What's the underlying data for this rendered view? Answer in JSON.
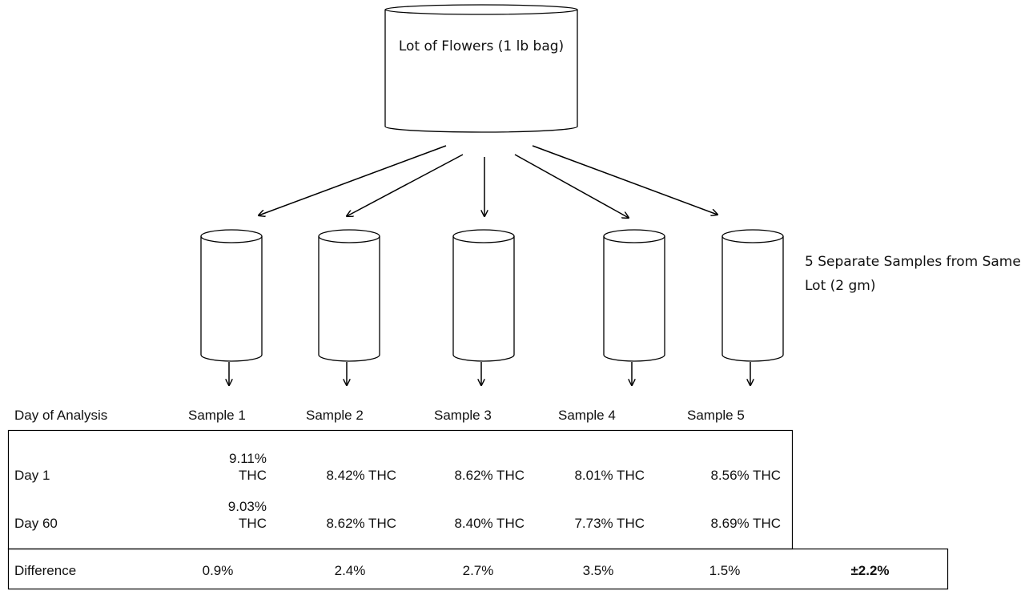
{
  "top_label": "Lot of Flowers (1 lb bag)",
  "side_label": "5 Separate Samples from Same Lot (2 gm)",
  "table": {
    "header": [
      "Day of Analysis",
      "Sample 1",
      "Sample 2",
      "Sample 3",
      "Sample 4",
      "Sample 5"
    ],
    "rows": [
      [
        "Day 1",
        "9.11% THC",
        "8.42% THC",
        "8.62% THC",
        "8.01% THC",
        "8.56% THC"
      ],
      [
        "Day 60",
        "9.03% THC",
        "8.62% THC",
        "8.40% THC",
        "7.73% THC",
        "8.69% THC"
      ],
      [
        "Difference",
        "0.9%",
        "2.4%",
        "2.7%",
        "3.5%",
        "1.5%",
        "±2.2%"
      ]
    ]
  }
}
